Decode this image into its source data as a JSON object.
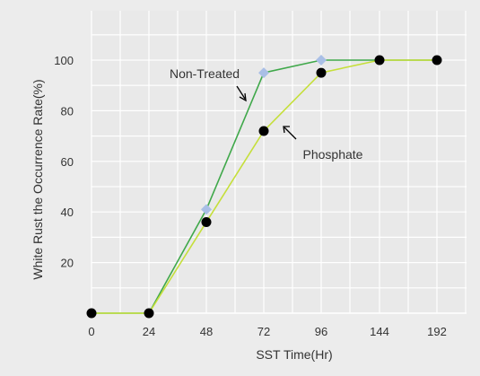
{
  "chart_data": {
    "type": "line",
    "x": [
      "0",
      "24",
      "48",
      "72",
      "96",
      "144",
      "192"
    ],
    "xlabel": "SST Time(Hr)",
    "ylabel": "White Rust the Occurrence Rate(%)",
    "ylim": [
      0,
      110
    ],
    "yticks": [
      20,
      40,
      60,
      80,
      100
    ],
    "grid": true,
    "series": [
      {
        "name": "Non-Treated",
        "color": "#3fa84a",
        "marker_color": "#a9bfe6",
        "marker": "diamond",
        "values": [
          0,
          0,
          41,
          95,
          100,
          100,
          100
        ]
      },
      {
        "name": "Phosphate",
        "color": "#c5df3a",
        "marker_color": "#000000",
        "marker": "circle",
        "values": [
          0,
          0,
          36,
          72,
          95,
          100,
          100
        ]
      }
    ],
    "annotations": [
      {
        "text": "Non-Treated",
        "series": "Non-Treated"
      },
      {
        "text": "Phosphate",
        "series": "Phosphate"
      }
    ]
  }
}
